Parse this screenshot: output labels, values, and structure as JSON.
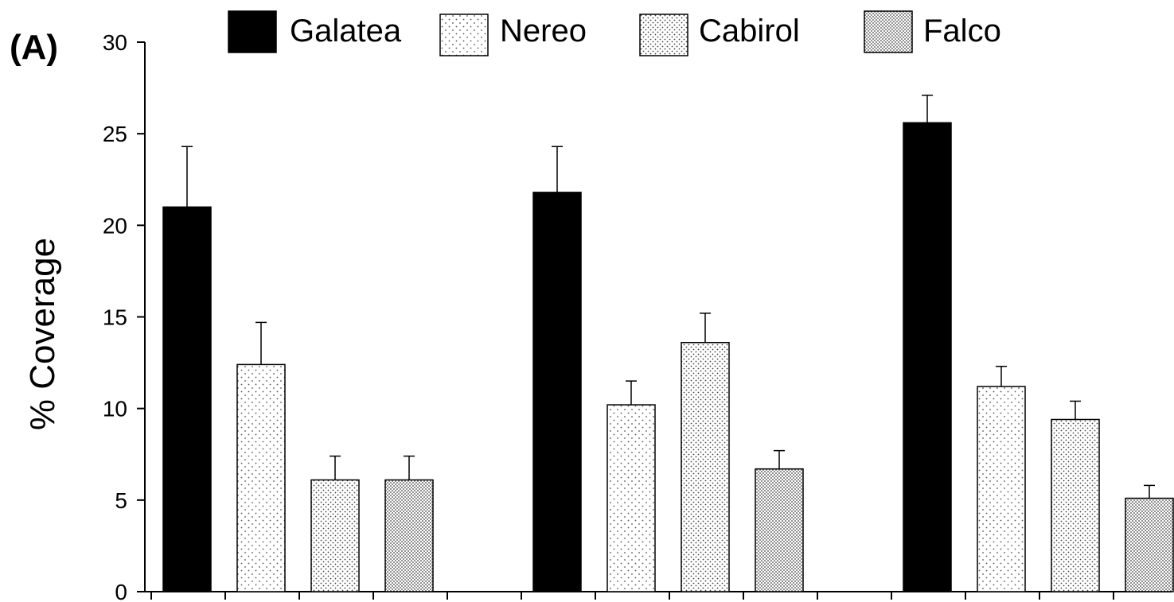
{
  "chart_data": {
    "type": "bar",
    "panel_label": "(A)",
    "title": "",
    "xlabel": "",
    "ylabel": "% Coverage",
    "ylim": [
      0,
      30
    ],
    "yticks": [
      0,
      5,
      10,
      15,
      20,
      25,
      30
    ],
    "grid": false,
    "legend_position": "top",
    "group_count": 3,
    "series": [
      {
        "name": "Galatea",
        "fill": "solid",
        "color": "#000000",
        "values": [
          21.0,
          21.8,
          25.6
        ],
        "errors": [
          3.3,
          2.5,
          1.5
        ]
      },
      {
        "name": "Nereo",
        "fill": "sparse-dots",
        "color": "#ffffff",
        "values": [
          12.4,
          10.2,
          11.2
        ],
        "errors": [
          2.3,
          1.3,
          1.1
        ]
      },
      {
        "name": "Cabirol",
        "fill": "medium-dots",
        "color": "#ffffff",
        "values": [
          6.1,
          13.6,
          9.4
        ],
        "errors": [
          1.3,
          1.6,
          1.0
        ]
      },
      {
        "name": "Falco",
        "fill": "dense-dots",
        "color": "#ffffff",
        "values": [
          6.1,
          6.7,
          5.1
        ],
        "errors": [
          1.3,
          1.0,
          0.7
        ]
      }
    ]
  }
}
